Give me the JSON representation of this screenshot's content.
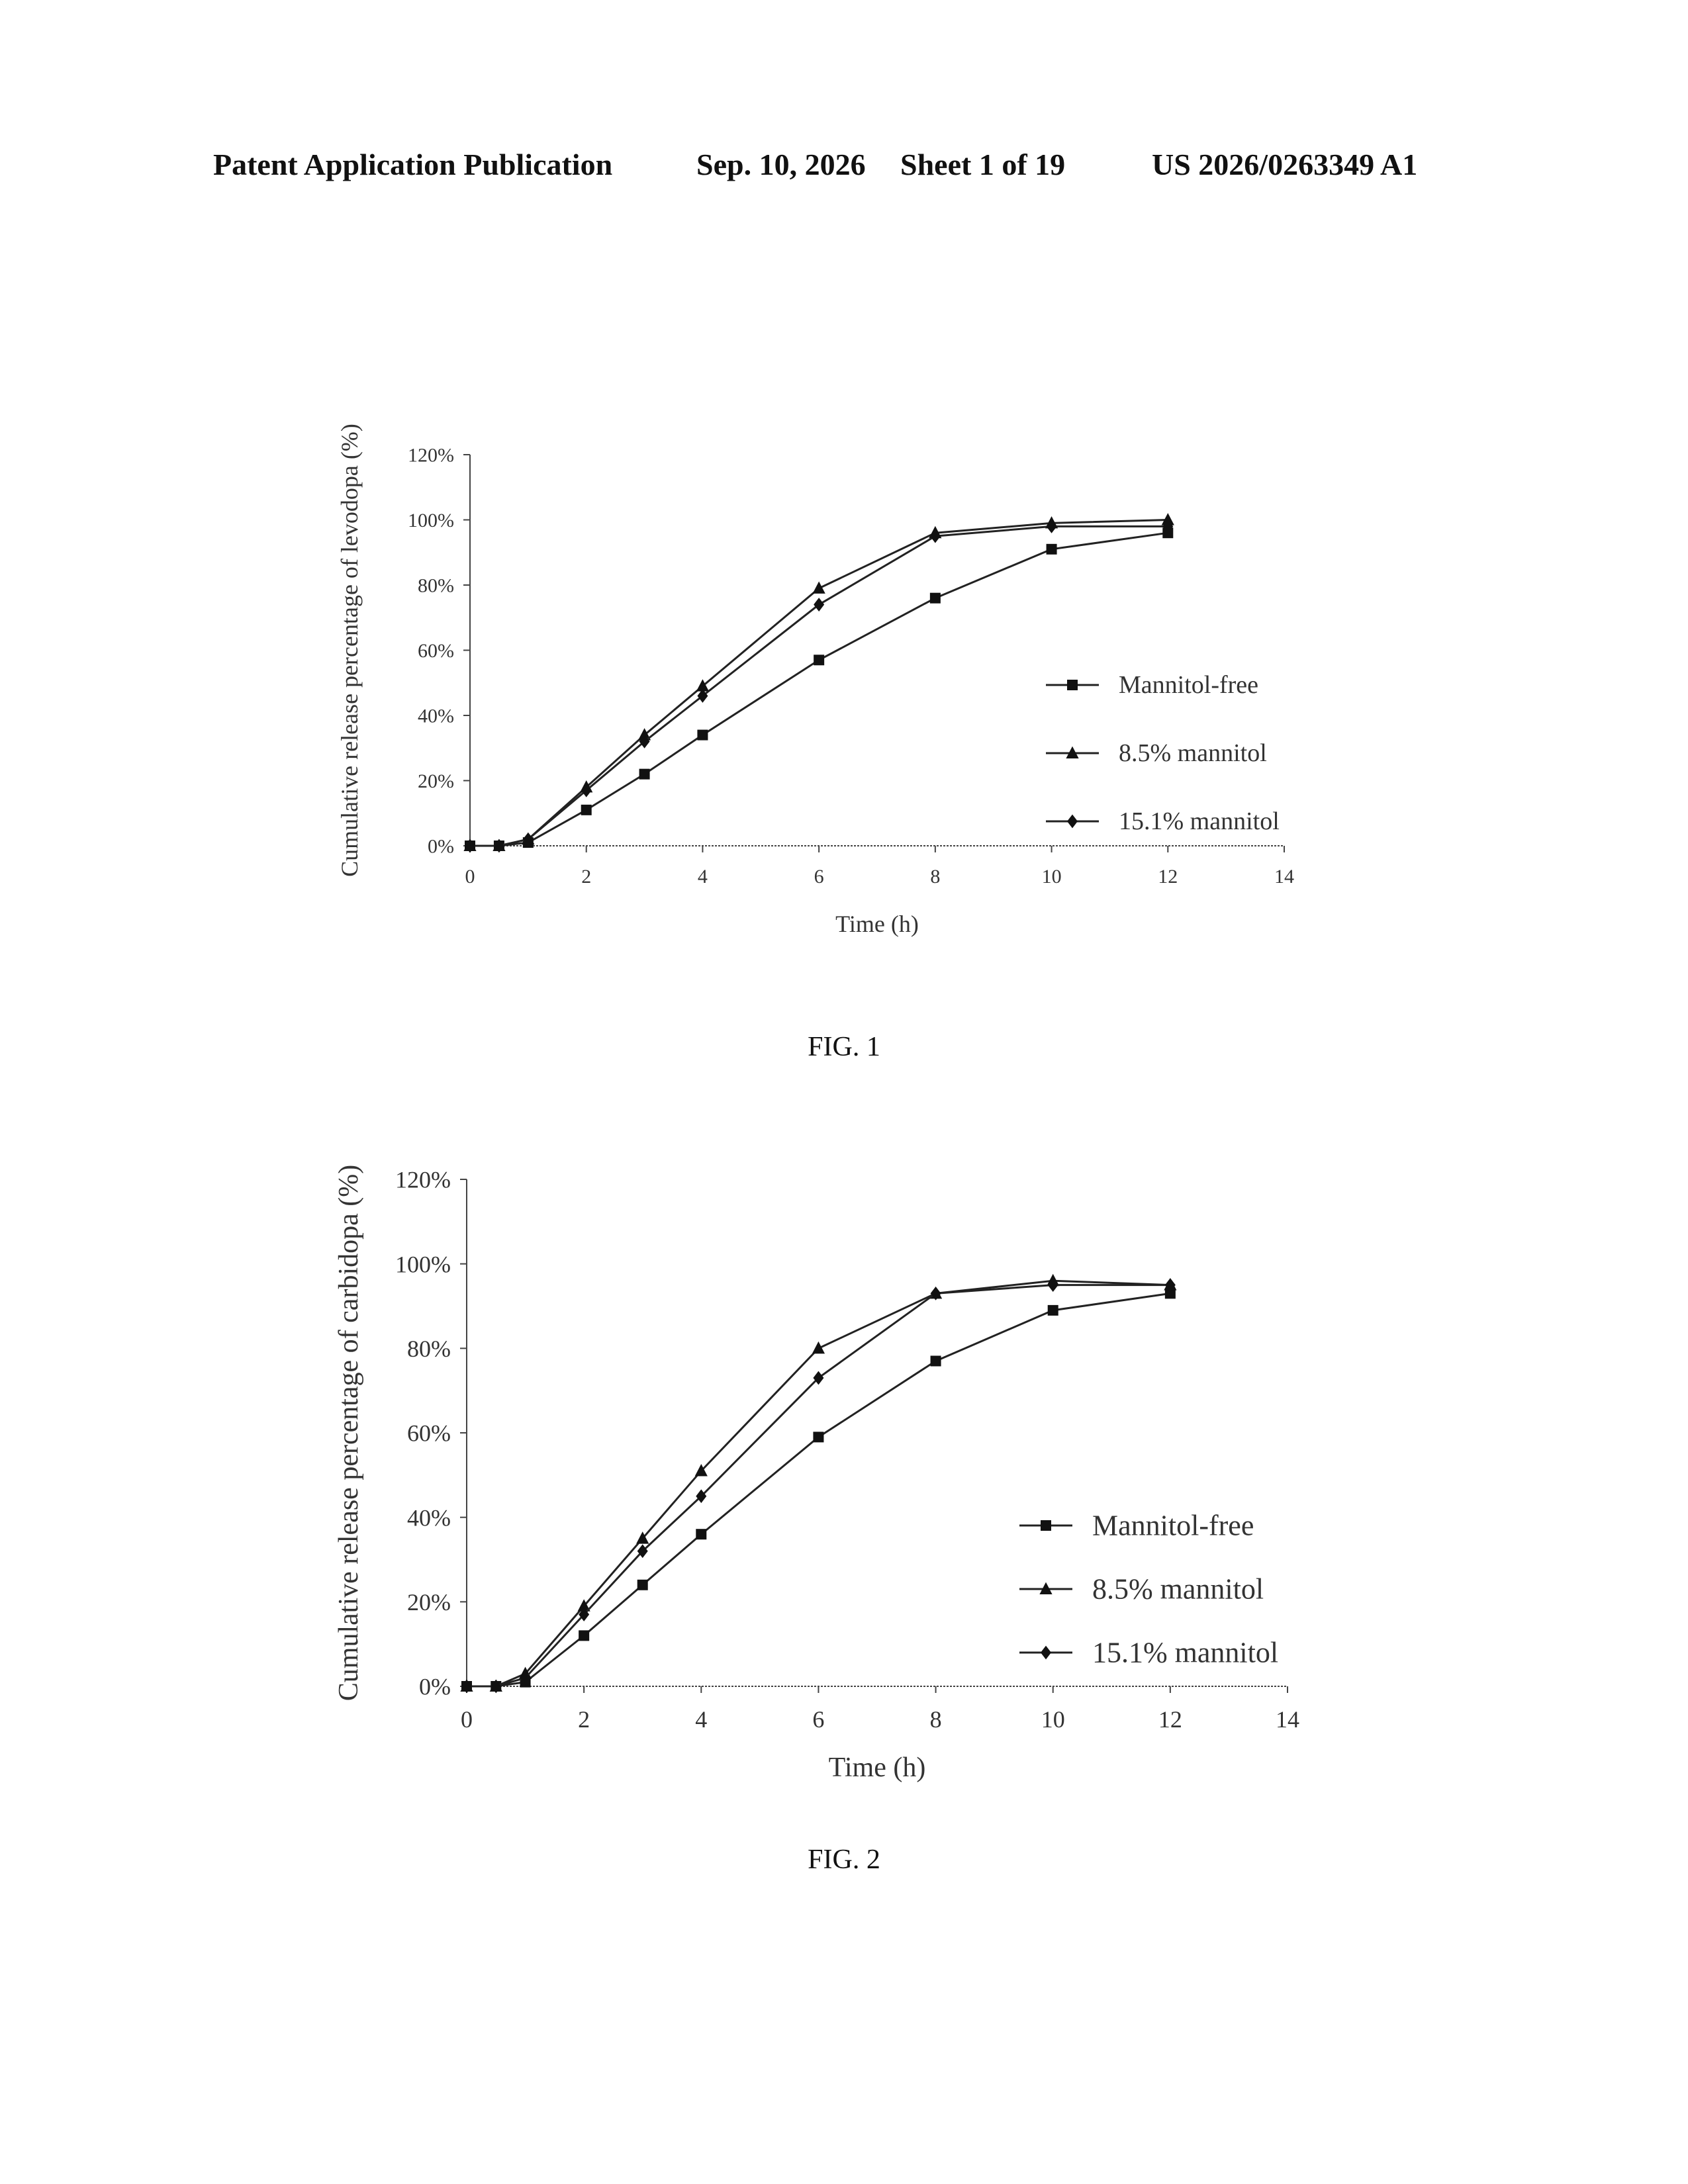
{
  "header": {
    "publication_type": "Patent Application Publication",
    "date": "Sep. 10, 2026",
    "sheet": "Sheet 1 of 19",
    "publication_number": "US 2026/0263349 A1"
  },
  "figures": [
    {
      "caption": "FIG. 1"
    },
    {
      "caption": "FIG. 2"
    }
  ],
  "chart_data": [
    {
      "type": "line",
      "title": "",
      "xlabel": "Time (h)",
      "ylabel": "Cumulative release percentage of levodopa (%)",
      "xlim": [
        0,
        14
      ],
      "ylim": [
        0,
        120
      ],
      "x_ticks": [
        "0",
        "2",
        "4",
        "6",
        "8",
        "10",
        "12",
        "14"
      ],
      "y_ticks": [
        "0%",
        "20%",
        "40%",
        "60%",
        "80%",
        "100%",
        "120%"
      ],
      "grid": false,
      "legend_position": "right",
      "series": [
        {
          "name": "Mannitol-free",
          "marker": "square",
          "x": [
            0,
            0.5,
            1,
            2,
            3,
            4,
            6,
            8,
            10,
            12
          ],
          "y": [
            0,
            0,
            1,
            11,
            22,
            34,
            57,
            76,
            91,
            96
          ]
        },
        {
          "name": "8.5% mannitol",
          "marker": "triangle",
          "x": [
            0,
            0.5,
            1,
            2,
            3,
            4,
            6,
            8,
            10,
            12
          ],
          "y": [
            0,
            0,
            2,
            18,
            34,
            49,
            79,
            96,
            99,
            100
          ]
        },
        {
          "name": "15.1% mannitol",
          "marker": "diamond",
          "x": [
            0,
            0.5,
            1,
            2,
            3,
            4,
            6,
            8,
            10,
            12
          ],
          "y": [
            0,
            0,
            2,
            17,
            32,
            46,
            74,
            95,
            98,
            98
          ]
        }
      ]
    },
    {
      "type": "line",
      "title": "",
      "xlabel": "Time (h)",
      "ylabel": "Cumulative release percentage of carbidopa (%)",
      "xlim": [
        0,
        14
      ],
      "ylim": [
        0,
        120
      ],
      "x_ticks": [
        "0",
        "2",
        "4",
        "6",
        "8",
        "10",
        "12",
        "14"
      ],
      "y_ticks": [
        "0%",
        "20%",
        "40%",
        "60%",
        "80%",
        "100%",
        "120%"
      ],
      "grid": false,
      "legend_position": "right",
      "series": [
        {
          "name": "Mannitol-free",
          "marker": "square",
          "x": [
            0,
            0.5,
            1,
            2,
            3,
            4,
            6,
            8,
            10,
            12
          ],
          "y": [
            0,
            0,
            1,
            12,
            24,
            36,
            59,
            77,
            89,
            93
          ]
        },
        {
          "name": "8.5% mannitol",
          "marker": "triangle",
          "x": [
            0,
            0.5,
            1,
            2,
            3,
            4,
            6,
            8,
            10,
            12
          ],
          "y": [
            0,
            0,
            3,
            19,
            35,
            51,
            80,
            93,
            96,
            95
          ]
        },
        {
          "name": "15.1% mannitol",
          "marker": "diamond",
          "x": [
            0,
            0.5,
            1,
            2,
            3,
            4,
            6,
            8,
            10,
            12
          ],
          "y": [
            0,
            0,
            2,
            17,
            32,
            45,
            73,
            93,
            95,
            95
          ]
        }
      ]
    }
  ]
}
